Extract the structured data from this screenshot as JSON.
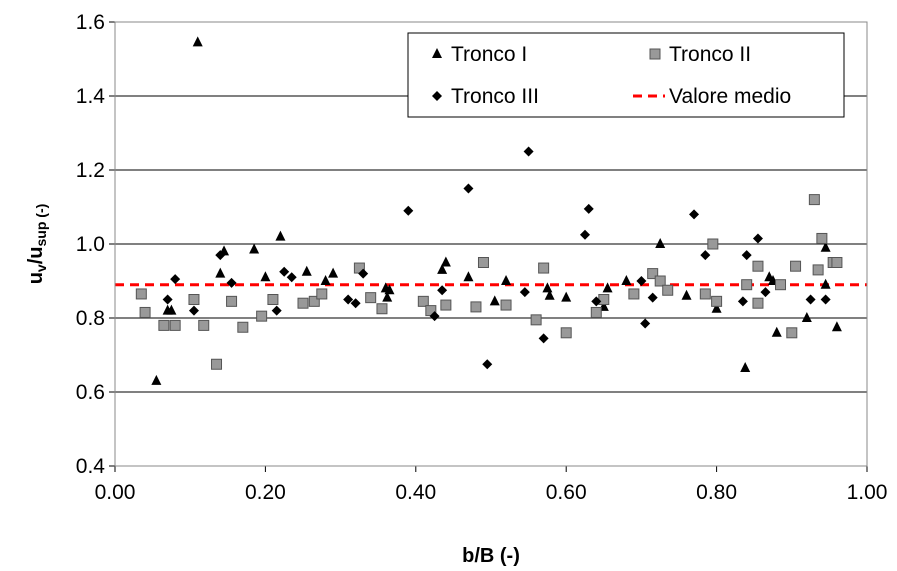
{
  "chart_data": {
    "type": "scatter",
    "xlabel": "b/B (-)",
    "ylabel": {
      "main": "u",
      "sub1": "v",
      "slash": "/u",
      "sub2": "sup",
      "unit": " (-)"
    },
    "xlim": [
      0.0,
      1.0
    ],
    "ylim": [
      0.4,
      1.6
    ],
    "x_ticks": [
      "0.00",
      "0.20",
      "0.40",
      "0.60",
      "0.80",
      "1.00"
    ],
    "y_ticks": [
      "0.4",
      "0.6",
      "0.8",
      "1.0",
      "1.2",
      "1.4",
      "1.6"
    ],
    "grid": "horizontal",
    "legend_position": "top-right",
    "series": [
      {
        "name": "Tronco I",
        "marker": "triangle",
        "color": "#000000",
        "points": [
          [
            0.055,
            0.63
          ],
          [
            0.07,
            0.82
          ],
          [
            0.075,
            0.82
          ],
          [
            0.11,
            1.545
          ],
          [
            0.14,
            0.92
          ],
          [
            0.145,
            0.98
          ],
          [
            0.185,
            0.985
          ],
          [
            0.2,
            0.91
          ],
          [
            0.22,
            1.02
          ],
          [
            0.255,
            0.925
          ],
          [
            0.28,
            0.9
          ],
          [
            0.29,
            0.92
          ],
          [
            0.36,
            0.88
          ],
          [
            0.362,
            0.855
          ],
          [
            0.365,
            0.875
          ],
          [
            0.435,
            0.93
          ],
          [
            0.44,
            0.95
          ],
          [
            0.47,
            0.91
          ],
          [
            0.505,
            0.845
          ],
          [
            0.52,
            0.9
          ],
          [
            0.575,
            0.88
          ],
          [
            0.578,
            0.86
          ],
          [
            0.6,
            0.855
          ],
          [
            0.65,
            0.83
          ],
          [
            0.655,
            0.88
          ],
          [
            0.68,
            0.9
          ],
          [
            0.725,
            1.0
          ],
          [
            0.76,
            0.86
          ],
          [
            0.8,
            0.825
          ],
          [
            0.838,
            0.665
          ],
          [
            0.87,
            0.91
          ],
          [
            0.875,
            0.9
          ],
          [
            0.88,
            0.76
          ],
          [
            0.92,
            0.8
          ],
          [
            0.945,
            0.89
          ],
          [
            0.945,
            0.99
          ],
          [
            0.96,
            0.775
          ]
        ]
      },
      {
        "name": "Tronco II",
        "marker": "square",
        "color": "#999999",
        "points": [
          [
            0.035,
            0.865
          ],
          [
            0.04,
            0.815
          ],
          [
            0.065,
            0.78
          ],
          [
            0.08,
            0.78
          ],
          [
            0.105,
            0.85
          ],
          [
            0.118,
            0.78
          ],
          [
            0.135,
            0.675
          ],
          [
            0.155,
            0.845
          ],
          [
            0.17,
            0.775
          ],
          [
            0.195,
            0.805
          ],
          [
            0.21,
            0.85
          ],
          [
            0.25,
            0.84
          ],
          [
            0.265,
            0.845
          ],
          [
            0.275,
            0.865
          ],
          [
            0.325,
            0.935
          ],
          [
            0.34,
            0.855
          ],
          [
            0.355,
            0.825
          ],
          [
            0.41,
            0.845
          ],
          [
            0.42,
            0.82
          ],
          [
            0.44,
            0.835
          ],
          [
            0.48,
            0.83
          ],
          [
            0.49,
            0.95
          ],
          [
            0.52,
            0.835
          ],
          [
            0.56,
            0.795
          ],
          [
            0.57,
            0.935
          ],
          [
            0.6,
            0.76
          ],
          [
            0.64,
            0.815
          ],
          [
            0.65,
            0.85
          ],
          [
            0.69,
            0.865
          ],
          [
            0.715,
            0.92
          ],
          [
            0.725,
            0.9
          ],
          [
            0.735,
            0.875
          ],
          [
            0.785,
            0.865
          ],
          [
            0.795,
            1.0
          ],
          [
            0.8,
            0.845
          ],
          [
            0.84,
            0.89
          ],
          [
            0.855,
            0.84
          ],
          [
            0.855,
            0.94
          ],
          [
            0.885,
            0.89
          ],
          [
            0.9,
            0.76
          ],
          [
            0.905,
            0.94
          ],
          [
            0.93,
            1.12
          ],
          [
            0.935,
            0.93
          ],
          [
            0.94,
            1.015
          ],
          [
            0.955,
            0.95
          ],
          [
            0.96,
            0.95
          ]
        ]
      },
      {
        "name": "Tronco III",
        "marker": "diamond",
        "color": "#000000",
        "points": [
          [
            0.07,
            0.85
          ],
          [
            0.08,
            0.905
          ],
          [
            0.105,
            0.82
          ],
          [
            0.14,
            0.97
          ],
          [
            0.155,
            0.895
          ],
          [
            0.215,
            0.82
          ],
          [
            0.225,
            0.925
          ],
          [
            0.235,
            0.91
          ],
          [
            0.31,
            0.85
          ],
          [
            0.32,
            0.84
          ],
          [
            0.33,
            0.92
          ],
          [
            0.39,
            1.09
          ],
          [
            0.425,
            0.805
          ],
          [
            0.435,
            0.875
          ],
          [
            0.47,
            1.15
          ],
          [
            0.495,
            0.675
          ],
          [
            0.545,
            0.87
          ],
          [
            0.55,
            1.25
          ],
          [
            0.57,
            0.745
          ],
          [
            0.625,
            1.025
          ],
          [
            0.63,
            1.095
          ],
          [
            0.64,
            0.845
          ],
          [
            0.7,
            0.9
          ],
          [
            0.705,
            0.785
          ],
          [
            0.715,
            0.855
          ],
          [
            0.77,
            1.08
          ],
          [
            0.785,
            0.97
          ],
          [
            0.835,
            0.845
          ],
          [
            0.84,
            0.97
          ],
          [
            0.855,
            1.015
          ],
          [
            0.865,
            0.87
          ],
          [
            0.925,
            0.85
          ],
          [
            0.945,
            0.85
          ]
        ]
      },
      {
        "name": "Valore medio",
        "marker": "dashed-line",
        "color": "#ff0000",
        "points": [
          [
            0.0,
            0.89
          ],
          [
            1.0,
            0.89
          ]
        ]
      }
    ]
  }
}
